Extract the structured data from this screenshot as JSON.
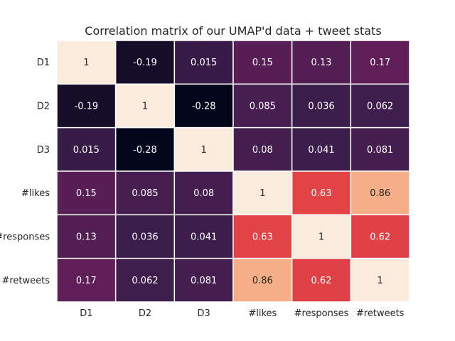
{
  "chart_data": {
    "type": "heatmap",
    "title": "Correlation matrix of our UMAP'd data + tweet stats",
    "xlabel": "",
    "ylabel": "",
    "rows": [
      "D1",
      "D2",
      "D3",
      "#likes",
      "#responses",
      "#retweets"
    ],
    "columns": [
      "D1",
      "D2",
      "D3",
      "#likes",
      "#responses",
      "#retweets"
    ],
    "values": [
      [
        1,
        -0.19,
        0.015,
        0.15,
        0.13,
        0.17
      ],
      [
        -0.19,
        1,
        -0.28,
        0.085,
        0.036,
        0.062
      ],
      [
        0.015,
        -0.28,
        1,
        0.08,
        0.041,
        0.081
      ],
      [
        0.15,
        0.085,
        0.08,
        1,
        0.63,
        0.86
      ],
      [
        0.13,
        0.036,
        0.041,
        0.63,
        1,
        0.62
      ],
      [
        0.17,
        0.062,
        0.081,
        0.86,
        0.62,
        1
      ]
    ],
    "labels": [
      [
        "1",
        "-0.19",
        "0.015",
        "0.15",
        "0.13",
        "0.17"
      ],
      [
        "-0.19",
        "1",
        "-0.28",
        "0.085",
        "0.036",
        "0.062"
      ],
      [
        "0.015",
        "-0.28",
        "1",
        "0.08",
        "0.041",
        "0.081"
      ],
      [
        "0.15",
        "0.085",
        "0.08",
        "1",
        "0.63",
        "0.86"
      ],
      [
        "0.13",
        "0.036",
        "0.041",
        "0.63",
        "1",
        "0.62"
      ],
      [
        "0.17",
        "0.062",
        "0.081",
        "0.86",
        "0.62",
        "1"
      ]
    ],
    "value_range": [
      -0.28,
      1
    ],
    "colormap": "rocket",
    "colorbar": false,
    "grid": false
  }
}
